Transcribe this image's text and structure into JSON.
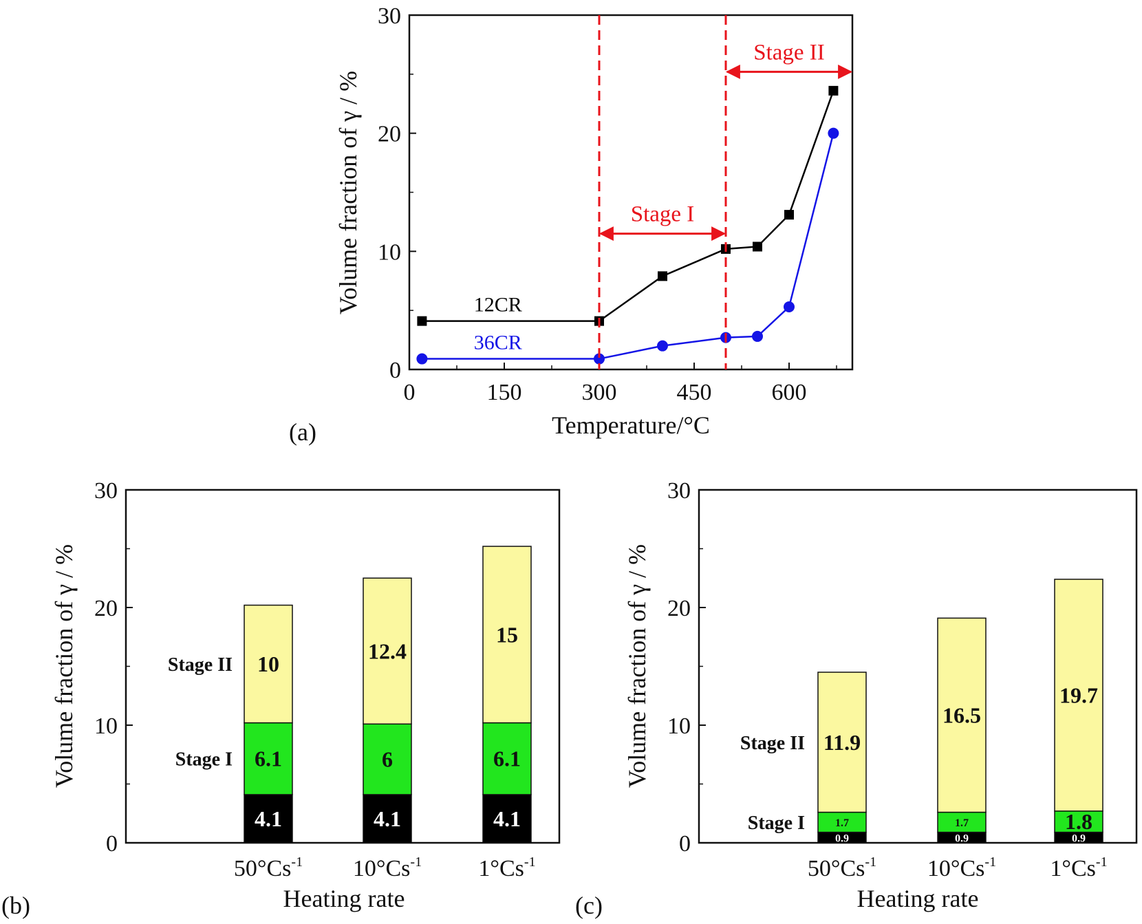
{
  "colors": {
    "series_12CR": "#000000",
    "series_36CR": "#1414e6",
    "stage_markers": "#e8141c",
    "base_segment": "#000000",
    "stage1_segment": "#22e61e",
    "stage2_segment": "#fbf8a0"
  },
  "chart_data": [
    {
      "panel": "(a)",
      "type": "line",
      "xlabel": "Temperature/°C",
      "ylabel": "Volume fraction of γ / %",
      "xlim": [
        0,
        700
      ],
      "ylim": [
        0,
        30
      ],
      "xticks": [
        "0",
        "150",
        "300",
        "450",
        "600"
      ],
      "yticks": [
        "0",
        "10",
        "20",
        "30"
      ],
      "series": [
        {
          "name": "12CR",
          "x": [
            20,
            300,
            400,
            500,
            550,
            600,
            670
          ],
          "y": [
            4.1,
            4.1,
            7.9,
            10.2,
            10.4,
            13.1,
            23.6
          ]
        },
        {
          "name": "36CR",
          "x": [
            20,
            300,
            400,
            500,
            550,
            600,
            670
          ],
          "y": [
            0.9,
            0.9,
            2.0,
            2.7,
            2.8,
            5.3,
            20.0
          ]
        }
      ],
      "vlines": [
        300,
        500
      ],
      "annotations": [
        {
          "text": "Stage I",
          "from": 300,
          "to": 500
        },
        {
          "text": "Stage II",
          "from": 500,
          "to": 700
        }
      ]
    },
    {
      "panel": "(b)",
      "type": "bar",
      "stacked": true,
      "xlabel": "Heating rate",
      "ylabel": "Volume fraction of γ / %",
      "ylim": [
        0,
        30
      ],
      "yticks": [
        "0",
        "10",
        "20",
        "30"
      ],
      "categories": [
        "50",
        "10",
        "1"
      ],
      "category_unit": "°Cs",
      "category_exponent": "-1",
      "series": [
        {
          "values": [
            4.1,
            4.1,
            4.1
          ],
          "labels": [
            "4.1",
            "4.1",
            "4.1"
          ]
        },
        {
          "name": "Stage I",
          "values": [
            6.1,
            6,
            6.1
          ],
          "labels": [
            "6.1",
            "6",
            "6.1"
          ]
        },
        {
          "name": "Stage II",
          "values": [
            10,
            12.4,
            15
          ],
          "labels": [
            "10",
            "12.4",
            "15"
          ]
        }
      ]
    },
    {
      "panel": "(c)",
      "type": "bar",
      "stacked": true,
      "xlabel": "Heating rate",
      "ylabel": "Volume fraction of γ / %",
      "ylim": [
        0,
        30
      ],
      "yticks": [
        "0",
        "10",
        "20",
        "30"
      ],
      "categories": [
        "50",
        "10",
        "1"
      ],
      "category_unit": "°Cs",
      "category_exponent": "-1",
      "series": [
        {
          "values": [
            0.9,
            0.9,
            0.9
          ],
          "labels": [
            "0.9",
            "0.9",
            "0.9"
          ]
        },
        {
          "name": "Stage I",
          "values": [
            1.7,
            1.7,
            1.8
          ],
          "labels": [
            "1.7",
            "1.7",
            "1.8"
          ]
        },
        {
          "name": "Stage II",
          "values": [
            11.9,
            16.5,
            19.7
          ],
          "labels": [
            "11.9",
            "16.5",
            "19.7"
          ]
        }
      ]
    }
  ]
}
